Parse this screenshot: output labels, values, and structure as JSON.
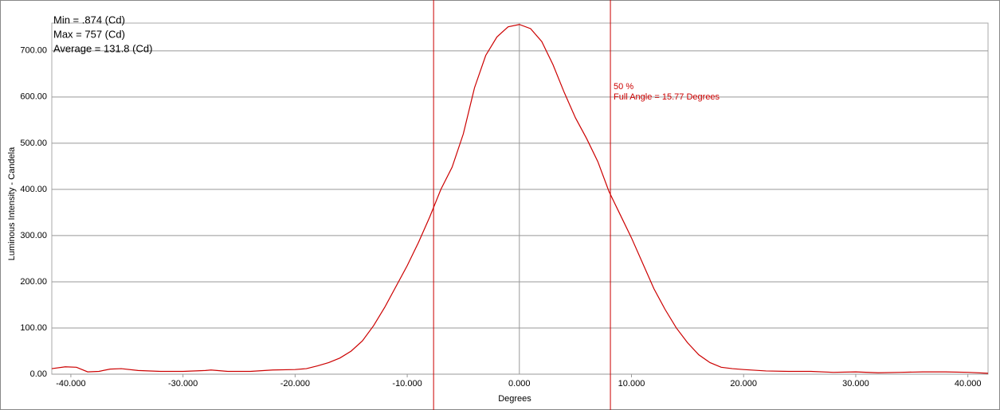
{
  "chart_data": {
    "type": "line",
    "stats": [
      "Min = .874 (Cd)",
      "Max = 757 (Cd)",
      "Average = 131.8 (Cd)"
    ],
    "x_label": "Degrees",
    "y_label": "Luminous Intensity - Candela",
    "annotation": [
      "50 %",
      "Full Angle = 15.77 Degrees"
    ],
    "color": "#cc0000",
    "vlines": [
      -7.65,
      8.12
    ],
    "x": [
      -41.7,
      -40.5,
      -39.5,
      -38.5,
      -37.5,
      -36.5,
      -35.5,
      -34,
      -32,
      -30,
      -28,
      -27.5,
      -26,
      -24,
      -22,
      -20,
      -19,
      -18,
      -17,
      -16,
      -15,
      -14,
      -13,
      -12,
      -11,
      -10,
      -9,
      -8,
      -7,
      -6,
      -5,
      -4,
      -3,
      -2,
      -1,
      0,
      1,
      2,
      3,
      4,
      5,
      6,
      7,
      8,
      9,
      10,
      11,
      12,
      13,
      14,
      15,
      16,
      17,
      18,
      19,
      20,
      22,
      24,
      26,
      28,
      30,
      32,
      34,
      36,
      38,
      40,
      41.8
    ],
    "values": [
      12,
      16,
      15,
      5,
      6,
      11,
      12,
      8,
      6,
      6,
      8,
      9,
      6,
      6,
      9,
      10,
      12,
      18,
      25,
      35,
      50,
      72,
      105,
      145,
      190,
      235,
      285,
      340,
      400,
      448,
      520,
      620,
      690,
      730,
      752,
      757,
      748,
      720,
      670,
      610,
      555,
      510,
      460,
      395,
      345,
      295,
      240,
      185,
      140,
      100,
      68,
      42,
      25,
      15,
      12,
      10,
      7,
      6,
      6,
      4,
      5,
      3,
      4,
      5,
      5,
      4,
      2
    ],
    "xlim": [
      -41.7,
      41.8
    ],
    "ylim": [
      0,
      760
    ],
    "xticks": [
      {
        "value": -40,
        "label": "-40.000"
      },
      {
        "value": -30,
        "label": "-30.000"
      },
      {
        "value": -20,
        "label": "-20.000"
      },
      {
        "value": -10,
        "label": "-10.000"
      },
      {
        "value": 0,
        "label": "0.000"
      },
      {
        "value": 10,
        "label": "10.000"
      },
      {
        "value": 20,
        "label": "20.000"
      },
      {
        "value": 30,
        "label": "30.000"
      },
      {
        "value": 40,
        "label": "40.000"
      }
    ],
    "yticks": [
      {
        "value": 0,
        "label": "0.00"
      },
      {
        "value": 100,
        "label": "100.00"
      },
      {
        "value": 200,
        "label": "200.00"
      },
      {
        "value": 300,
        "label": "300.00"
      },
      {
        "value": 400,
        "label": "400.00"
      },
      {
        "value": 500,
        "label": "500.00"
      },
      {
        "value": 600,
        "label": "600.00"
      },
      {
        "value": 700,
        "label": "700.00"
      }
    ],
    "grid": true
  }
}
